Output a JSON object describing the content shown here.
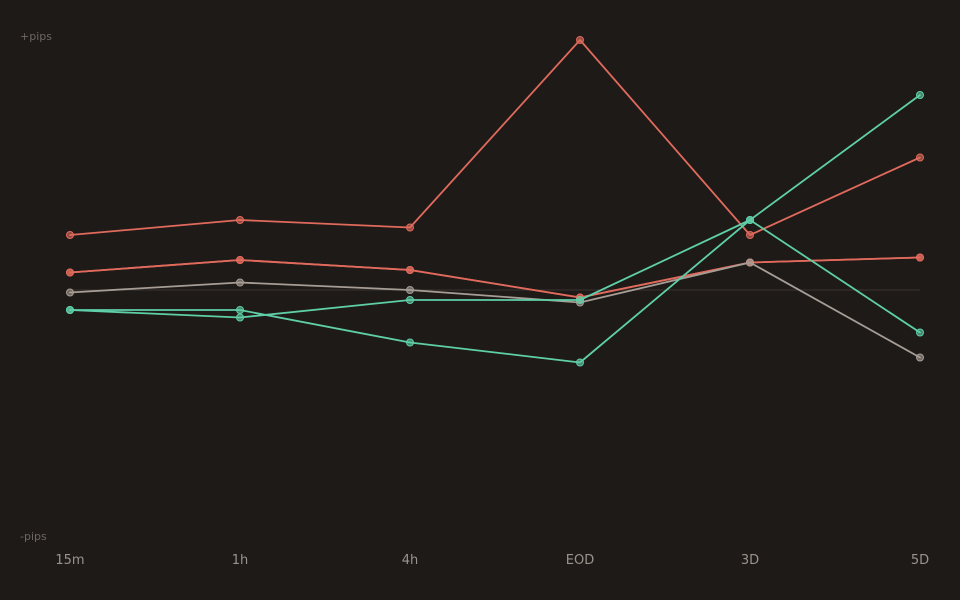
{
  "chart_data": {
    "type": "line",
    "title": "",
    "xlabel": "",
    "ylabel": "",
    "y_top_label": "+pips",
    "y_bottom_label": "-pips",
    "categories": [
      "15m",
      "1h",
      "4h",
      "EOD",
      "3D",
      "5D"
    ],
    "ylim": [
      -100,
      100
    ],
    "grid": false,
    "zero_line": true,
    "legend": "none",
    "series": [
      {
        "color": "#e06a5c",
        "values": [
          22,
          28,
          25,
          100,
          22,
          53
        ]
      },
      {
        "color": "#e06a5c",
        "values": [
          7,
          12,
          8,
          -3,
          11,
          13
        ]
      },
      {
        "color": "#e06a5c",
        "values": [
          7,
          12,
          8,
          -3,
          11,
          13
        ]
      },
      {
        "color": "#a69d95",
        "values": [
          -1,
          3,
          0,
          -5,
          11,
          -27
        ]
      },
      {
        "color": "#5fcfa8",
        "values": [
          -8,
          -11,
          -4,
          -4,
          28,
          -17
        ]
      },
      {
        "color": "#5fcfa8",
        "values": [
          -8,
          -8,
          -21,
          -29,
          28,
          78
        ]
      }
    ]
  }
}
